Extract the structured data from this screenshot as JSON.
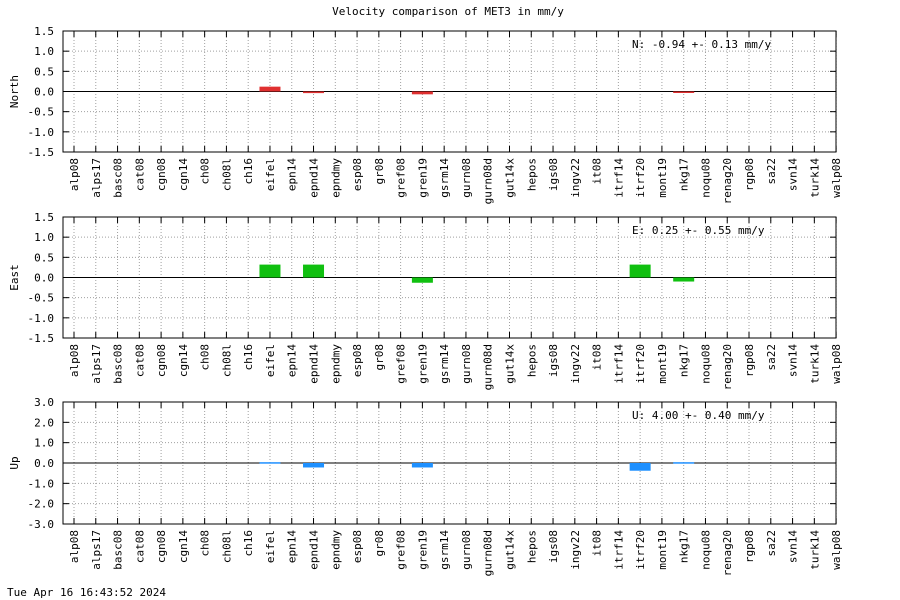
{
  "title": "Velocity comparison of MET3 in mm/y",
  "timestamp": "Tue Apr 16 16:43:52 2024",
  "chart_data": [
    {
      "type": "bar",
      "ylabel": "North",
      "ylim": [
        -1.5,
        1.5
      ],
      "yticks": [
        "1.5",
        "1.0",
        "0.5",
        "0.0",
        "-0.5",
        "-1.0",
        "-1.5"
      ],
      "grid": true,
      "summary": "N:  -0.94 +-  0.13 mm/y",
      "summary_position": "top-right",
      "color": "#e03030",
      "categories": [
        "alp08",
        "alps17",
        "basc08",
        "cat08",
        "cgn08",
        "cgn14",
        "ch08",
        "ch08l",
        "ch16",
        "eifel",
        "epn14",
        "epnd14",
        "epndmy",
        "esp08",
        "gr08",
        "gref08",
        "gren19",
        "gsrm14",
        "gurn08",
        "gurn08d",
        "gut14x",
        "hepos",
        "igs08",
        "ingv22",
        "it08",
        "itrf14",
        "itrf20",
        "mont19",
        "nkg17",
        "noqu08",
        "renag20",
        "rgp08",
        "sa22",
        "svn14",
        "turk14",
        "walp08"
      ],
      "values": [
        0,
        0,
        0,
        0,
        0,
        0,
        0,
        0,
        0,
        0.12,
        0,
        -0.04,
        0,
        0,
        0,
        0,
        -0.07,
        0,
        0,
        0,
        0,
        0,
        0,
        0,
        0,
        0,
        0,
        0,
        -0.02,
        0,
        0,
        0,
        0,
        0,
        0,
        0
      ]
    },
    {
      "type": "bar",
      "ylabel": "East",
      "ylim": [
        -1.5,
        1.5
      ],
      "yticks": [
        "1.5",
        "1.0",
        "0.5",
        "0.0",
        "-0.5",
        "-1.0",
        "-1.5"
      ],
      "grid": true,
      "summary": "E:   0.25 +-  0.55 mm/y",
      "summary_position": "top-right",
      "color": "#10c010",
      "categories": [
        "alp08",
        "alps17",
        "basc08",
        "cat08",
        "cgn08",
        "cgn14",
        "ch08",
        "ch08l",
        "ch16",
        "eifel",
        "epn14",
        "epnd14",
        "epndmy",
        "esp08",
        "gr08",
        "gref08",
        "gren19",
        "gsrm14",
        "gurn08",
        "gurn08d",
        "gut14x",
        "hepos",
        "igs08",
        "ingv22",
        "it08",
        "itrf14",
        "itrf20",
        "mont19",
        "nkg17",
        "noqu08",
        "renag20",
        "rgp08",
        "sa22",
        "svn14",
        "turk14",
        "walp08"
      ],
      "values": [
        0,
        0,
        0,
        0,
        0,
        0,
        0,
        0,
        0,
        0.32,
        0,
        0.32,
        0,
        0,
        0,
        0,
        -0.13,
        0,
        0,
        0,
        0,
        0,
        0,
        0,
        0,
        0,
        0.32,
        0,
        -0.1,
        0,
        0,
        0,
        0,
        0,
        0,
        0
      ]
    },
    {
      "type": "bar",
      "ylabel": "Up",
      "ylim": [
        -3.0,
        3.0
      ],
      "yticks": [
        "3.0",
        "2.0",
        "1.0",
        "0.0",
        "-1.0",
        "-2.0",
        "-3.0"
      ],
      "grid": true,
      "summary": "U:   4.00 +-  0.40 mm/y",
      "summary_position": "top-right",
      "color": "#1e90ff",
      "categories": [
        "alp08",
        "alps17",
        "basc08",
        "cat08",
        "cgn08",
        "cgn14",
        "ch08",
        "ch08l",
        "ch16",
        "eifel",
        "epn14",
        "epnd14",
        "epndmy",
        "esp08",
        "gr08",
        "gref08",
        "gren19",
        "gsrm14",
        "gurn08",
        "gurn08d",
        "gut14x",
        "hepos",
        "igs08",
        "ingv22",
        "it08",
        "itrf14",
        "itrf20",
        "mont19",
        "nkg17",
        "noqu08",
        "renag20",
        "rgp08",
        "sa22",
        "svn14",
        "turk14",
        "walp08"
      ],
      "values": [
        0,
        0,
        0,
        0,
        0,
        0,
        0,
        0,
        0,
        0.04,
        0,
        -0.22,
        0,
        0,
        0,
        0,
        -0.22,
        0,
        0,
        0,
        0,
        0,
        0,
        0,
        0,
        0,
        -0.38,
        0,
        0.04,
        0,
        0,
        0,
        0,
        0,
        0,
        0
      ]
    }
  ]
}
